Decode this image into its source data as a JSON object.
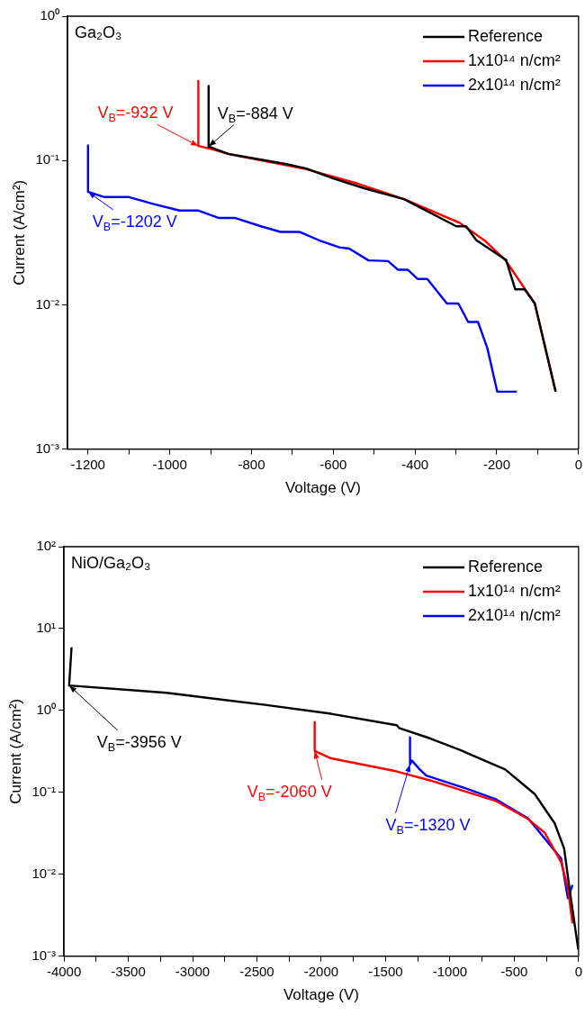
{
  "chart_data": [
    {
      "type": "line",
      "title": "Ga₂O₃",
      "xlabel": "Voltage (V)",
      "ylabel": "Current (A/cm²)",
      "log": "y",
      "grid": false,
      "legend": "top right",
      "marker": "none",
      "line_style": "solid",
      "xlim": [
        -1250,
        0
      ],
      "xticks": [
        {
          "value": -1200,
          "label": "-1200"
        },
        {
          "value": -1100,
          "label": null
        },
        {
          "value": -1000,
          "label": "-1000"
        },
        {
          "value": -900,
          "label": null
        },
        {
          "value": -800,
          "label": "-800"
        },
        {
          "value": -700,
          "label": null
        },
        {
          "value": -600,
          "label": "-600"
        },
        {
          "value": -500,
          "label": null
        },
        {
          "value": -400,
          "label": "-400"
        },
        {
          "value": -300,
          "label": null
        },
        {
          "value": -200,
          "label": "-200"
        },
        {
          "value": -100,
          "label": null
        },
        {
          "value": 0,
          "label": "0"
        }
      ],
      "ylim": [
        0.001,
        1
      ],
      "yticks": [
        {
          "value": 0.001,
          "label": "10⁻³"
        },
        {
          "value": 0.01,
          "label": "10⁻²"
        },
        {
          "value": 0.1,
          "label": "10⁻¹"
        },
        {
          "value": 1,
          "label": "10⁰"
        }
      ],
      "series": [
        {
          "name": "Reference",
          "color": "#000000",
          "x": [
            -905,
            -905,
            -857,
            -720,
            -666,
            -600,
            -523,
            -427,
            -299,
            -275,
            -250,
            -177,
            -155,
            -132,
            -107,
            -56
          ],
          "values": [
            0.328,
            0.125,
            0.111,
            0.095,
            0.088,
            0.075,
            0.064,
            0.054,
            0.035,
            0.035,
            0.028,
            0.0204,
            0.0128,
            0.0128,
            0.0102,
            0.0025
          ]
        },
        {
          "name": "1x10¹⁴ n/cm²",
          "color": "#ff0000",
          "x": [
            -930,
            -930,
            -897,
            -857,
            -666,
            -539,
            -427,
            -291,
            -227,
            -179,
            -107,
            -56
          ],
          "values": [
            0.355,
            0.126,
            0.12,
            0.111,
            0.087,
            0.069,
            0.054,
            0.037,
            0.0275,
            0.0204,
            0.0102,
            0.0025
          ]
        },
        {
          "name": "2x10¹⁴ n/cm²",
          "color": "#0000ff",
          "x": [
            -1200,
            -1200,
            -1160,
            -1100,
            -1041,
            -976,
            -930,
            -881,
            -841,
            -777,
            -729,
            -683,
            -635,
            -585,
            -561,
            -514,
            -466,
            -442,
            -418,
            -394,
            -370,
            -322,
            -294,
            -270,
            -246,
            -223,
            -199,
            -151
          ],
          "values": [
            0.127,
            0.0607,
            0.0558,
            0.0558,
            0.05,
            0.045,
            0.045,
            0.04,
            0.04,
            0.035,
            0.032,
            0.032,
            0.028,
            0.025,
            0.0245,
            0.0203,
            0.0201,
            0.0175,
            0.0175,
            0.0151,
            0.0151,
            0.0102,
            0.0102,
            0.0076,
            0.0076,
            0.005,
            0.0025,
            0.0025
          ]
        }
      ],
      "annotations": [
        {
          "text": "V$_{B}$=-932 V",
          "x": -930,
          "y": 0.126
        },
        {
          "text": "V$_{B}$=-884 V",
          "x": -905,
          "y": 0.125
        },
        {
          "text": "V$_{B}$=-1202 V",
          "x": -1200,
          "y": 0.0607
        }
      ]
    },
    {
      "type": "line",
      "title": "NiO/Ga₂O₃",
      "xlabel": "Voltage (V)",
      "ylabel": "Current (A/cm²)",
      "log": "y",
      "grid": false,
      "legend": "top right",
      "marker": "none",
      "line_style": "solid",
      "xlim": [
        -4000,
        0
      ],
      "xticks": [
        {
          "value": -4000,
          "label": "-4000"
        },
        {
          "value": -3750,
          "label": null
        },
        {
          "value": -3500,
          "label": "-3500"
        },
        {
          "value": -3250,
          "label": null
        },
        {
          "value": -3000,
          "label": "-3000"
        },
        {
          "value": -2750,
          "label": null
        },
        {
          "value": -2500,
          "label": "-2500"
        },
        {
          "value": -2250,
          "label": null
        },
        {
          "value": -2000,
          "label": "-2000"
        },
        {
          "value": -1750,
          "label": null
        },
        {
          "value": -1500,
          "label": "-1500"
        },
        {
          "value": -1250,
          "label": null
        },
        {
          "value": -1000,
          "label": "-1000"
        },
        {
          "value": -750,
          "label": null
        },
        {
          "value": -500,
          "label": "-500"
        },
        {
          "value": -250,
          "label": null
        },
        {
          "value": 0,
          "label": "0"
        }
      ],
      "ylim": [
        0.001,
        100
      ],
      "yticks": [
        {
          "value": 0.001,
          "label": "10⁻³"
        },
        {
          "value": 0.01,
          "label": "10⁻²"
        },
        {
          "value": 0.1,
          "label": "10⁻¹"
        },
        {
          "value": 1,
          "label": "10⁰"
        },
        {
          "value": 10,
          "label": "10¹"
        },
        {
          "value": 100,
          "label": "10²"
        }
      ],
      "series": [
        {
          "name": "Reference",
          "color": "#000000",
          "x": [
            -3941,
            -3960,
            -3202,
            -2437,
            -1923,
            -1413,
            -1395,
            -1156,
            -901,
            -883,
            -570,
            -340,
            -186,
            -112,
            -71,
            -2
          ],
          "values": [
            5.9,
            2.02,
            1.64,
            1.17,
            0.91,
            0.66,
            0.61,
            0.457,
            0.32,
            0.31,
            0.19,
            0.095,
            0.042,
            0.0206,
            0.0068,
            0.0012
          ]
        },
        {
          "name": "1x10¹⁴ n/cm²",
          "color": "#ff0000",
          "x": [
            -2051,
            -2051,
            -1923,
            -1413,
            -1156,
            -901,
            -648,
            -391,
            -262,
            -135,
            -83,
            -47
          ],
          "values": [
            0.72,
            0.32,
            0.26,
            0.18,
            0.14,
            0.105,
            0.079,
            0.047,
            0.032,
            0.014,
            0.0068,
            0.0025
          ]
        },
        {
          "name": "2x10¹⁴ n/cm²",
          "color": "#0000ff",
          "x": [
            -1310,
            -1310,
            -1296,
            -1234,
            -1184,
            -901,
            -648,
            -391,
            -135,
            -83,
            -47
          ],
          "values": [
            0.47,
            0.22,
            0.245,
            0.19,
            0.16,
            0.115,
            0.083,
            0.048,
            0.0155,
            0.0051,
            0.0074
          ]
        }
      ],
      "annotations": [
        {
          "text": "V$_{B}$=-3956 V",
          "x": -3960,
          "y": 2.02
        },
        {
          "text": "V$_{B}$=-2060 V",
          "x": -2051,
          "y": 0.32
        },
        {
          "text": "V$_{B}$=-1320 V",
          "x": -1310,
          "y": 0.22
        }
      ]
    }
  ]
}
